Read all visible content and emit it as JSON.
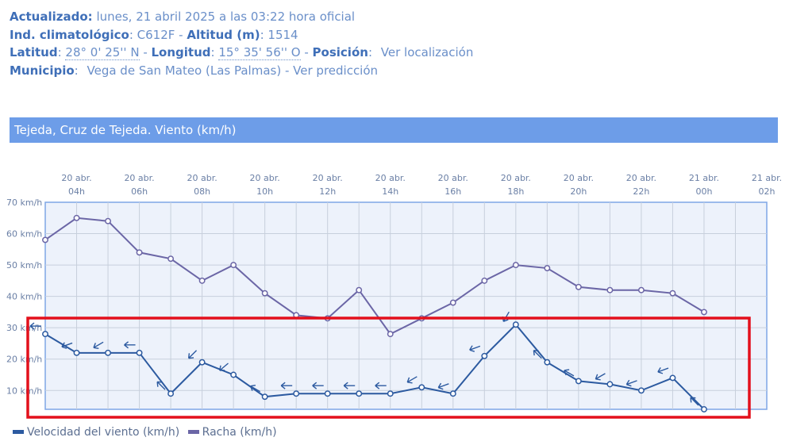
{
  "station_info": {
    "updated_label": "Actualizado:",
    "updated_value": "lunes, 21 abril 2025 a las 03:22 hora oficial",
    "climate_index_label": "Ind. climatológico",
    "climate_index_value": ": C612F -",
    "altitude_label": "Altitud (m)",
    "altitude_value": ": 1514",
    "latitude_label": "Latitud",
    "latitude_value": "28° 0' 25'' N",
    "longitude_label": "Longitud",
    "longitude_value": "15° 35' 56'' O",
    "position_label": "Posición",
    "position_link": "Ver localización",
    "municipality_label": "Municipio",
    "municipality_value": "Vega de San Mateo (Las Palmas) -",
    "forecast_link": "Ver predicción"
  },
  "chart_data": {
    "type": "line",
    "title": "Tejeda, Cruz de Tejeda. Viento (km/h)",
    "x_ticks": [
      [
        "20 abr.",
        "04h"
      ],
      [
        "20 abr.",
        "06h"
      ],
      [
        "20 abr.",
        "08h"
      ],
      [
        "20 abr.",
        "10h"
      ],
      [
        "20 abr.",
        "12h"
      ],
      [
        "20 abr.",
        "14h"
      ],
      [
        "20 abr.",
        "16h"
      ],
      [
        "20 abr.",
        "18h"
      ],
      [
        "20 abr.",
        "20h"
      ],
      [
        "20 abr.",
        "22h"
      ],
      [
        "21 abr.",
        "00h"
      ],
      [
        "21 abr.",
        "02h"
      ]
    ],
    "x_hours": [
      "03:00",
      "04:00",
      "05:00",
      "06:00",
      "07:00",
      "08:00",
      "09:00",
      "10:00",
      "11:00",
      "12:00",
      "13:00",
      "14:00",
      "15:00",
      "16:00",
      "17:00",
      "18:00",
      "19:00",
      "20:00",
      "21:00",
      "22:00",
      "23:00",
      "00:00"
    ],
    "y_ticks": [
      "10 km/h",
      "20 km/h",
      "30 km/h",
      "40 km/h",
      "50 km/h",
      "60 km/h",
      "70 km/h"
    ],
    "ylim": [
      4,
      70
    ],
    "series": [
      {
        "name": "Velocidad del viento (km/h)",
        "color": "#2c5aa0",
        "values": [
          28,
          22,
          22,
          22,
          9,
          19,
          15,
          8,
          9,
          9,
          9,
          9,
          11,
          9,
          21,
          31,
          19,
          13,
          12,
          10,
          14,
          4
        ],
        "wind_from_deg": [
          90,
          70,
          60,
          90,
          135,
          45,
          50,
          120,
          90,
          90,
          90,
          90,
          60,
          70,
          70,
          30,
          135,
          120,
          60,
          70,
          70,
          135
        ]
      },
      {
        "name": "Racha (km/h)",
        "color": "#6b66a6",
        "values": [
          58,
          65,
          64,
          54,
          52,
          45,
          50,
          41,
          34,
          33,
          42,
          28,
          33,
          38,
          45,
          50,
          49,
          43,
          42,
          42,
          41,
          35
        ]
      }
    ],
    "grid": true,
    "legend_position": "bottom-left"
  }
}
